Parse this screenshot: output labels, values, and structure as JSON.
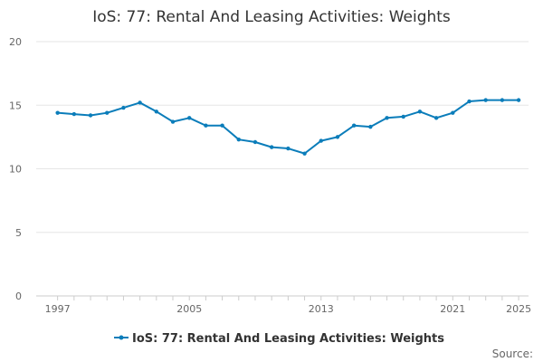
{
  "chart_data": {
    "type": "line",
    "title": "IoS: 77: Rental And Leasing Activities: Weights",
    "xlabel": "",
    "ylabel": "",
    "x": [
      1997,
      1998,
      1999,
      2000,
      2001,
      2002,
      2003,
      2004,
      2005,
      2006,
      2007,
      2008,
      2009,
      2010,
      2011,
      2012,
      2013,
      2014,
      2015,
      2016,
      2017,
      2018,
      2019,
      2020,
      2021,
      2022,
      2023,
      2024,
      2025
    ],
    "series": [
      {
        "name": "IoS: 77: Rental And Leasing Activities: Weights",
        "color": "#0b7dba",
        "values": [
          14.4,
          14.3,
          14.2,
          14.4,
          14.8,
          15.2,
          14.5,
          13.7,
          14.0,
          13.4,
          13.4,
          12.3,
          12.1,
          11.7,
          11.6,
          11.2,
          12.2,
          12.5,
          13.4,
          13.3,
          14.0,
          14.1,
          14.5,
          14.0,
          14.4,
          15.3,
          15.4,
          15.4,
          15.4
        ]
      }
    ],
    "xlim": [
      1997,
      2025
    ],
    "ylim": [
      0,
      20
    ],
    "y_ticks": [
      0,
      5,
      10,
      15,
      20
    ],
    "x_tick_labels": [
      "1997",
      "2005",
      "2013",
      "2021",
      "2025"
    ],
    "grid": "horizontal",
    "legend_position": "bottom"
  },
  "footer": {
    "source_label": "Source:"
  }
}
